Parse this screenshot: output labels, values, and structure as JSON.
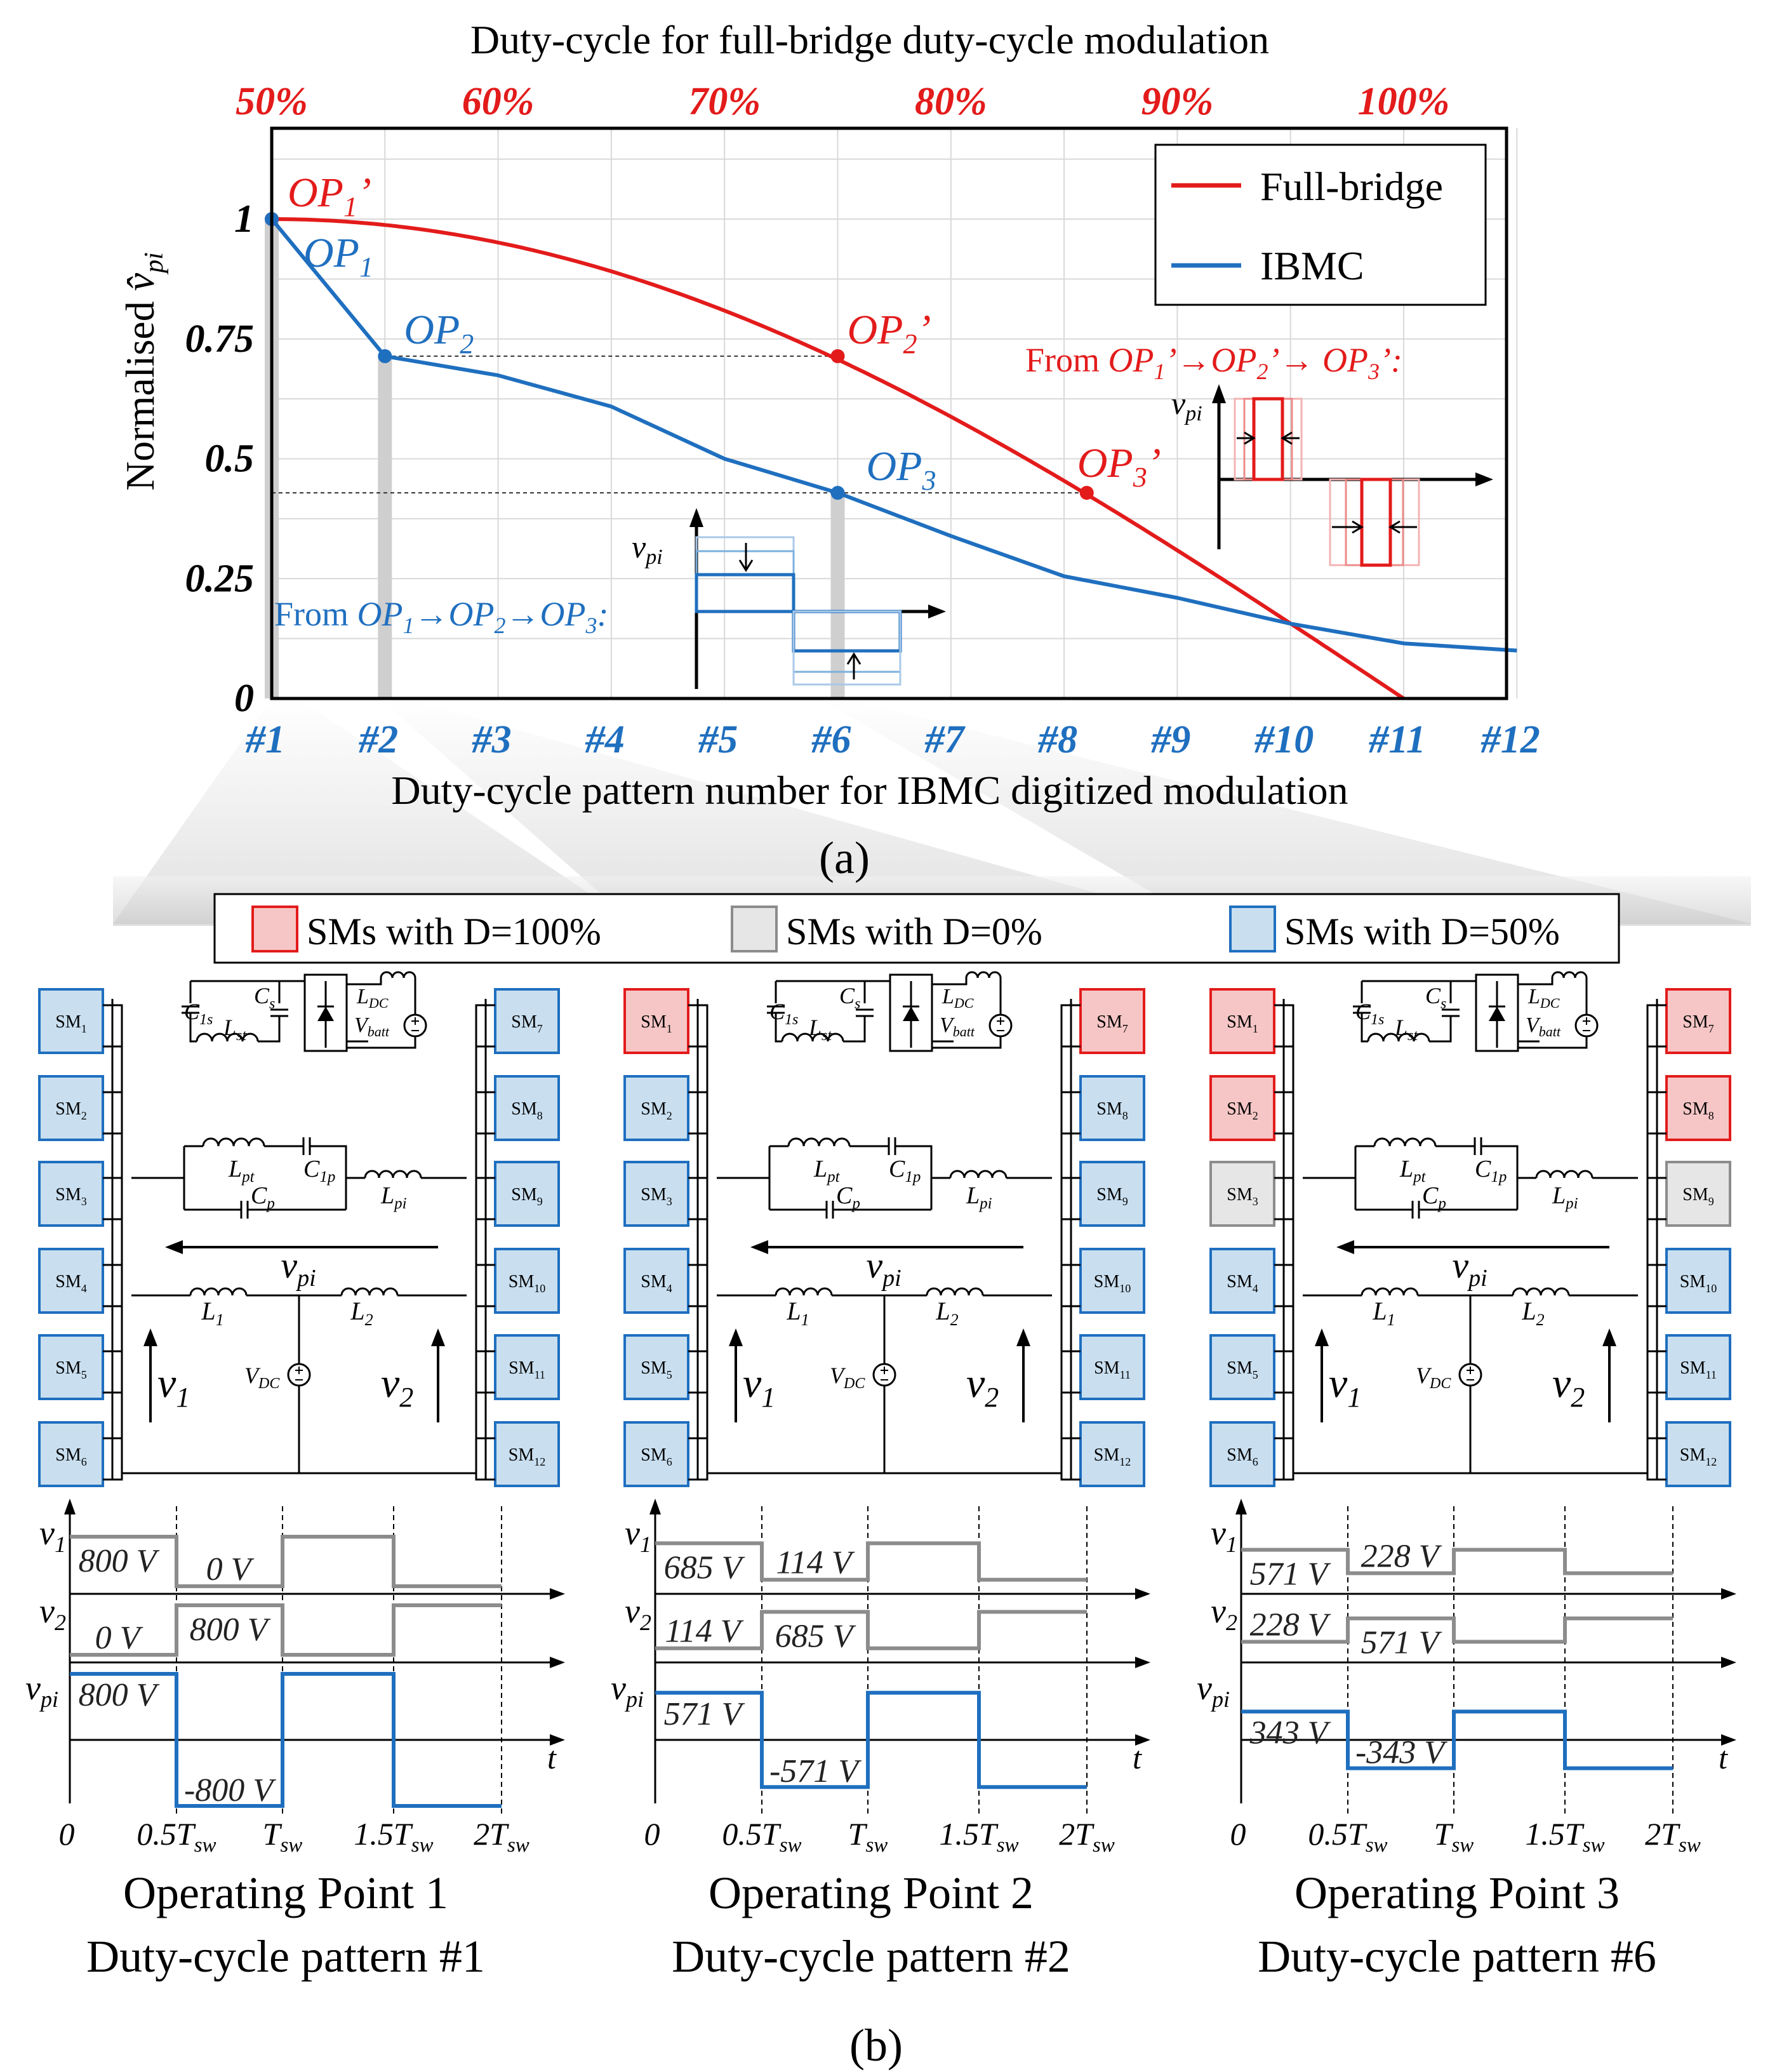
{
  "colors": {
    "red": "#e31b1b",
    "blue": "#1f6fbf",
    "grey": "#8c8c8c",
    "fill_red": "#f6c6c6",
    "fill_grey": "#e6e6e6",
    "fill_blue": "#c9dff0",
    "black": "#000000"
  },
  "chart_data": {
    "type": "line",
    "top_axis_title": "Duty-cycle for full-bridge duty-cycle modulation",
    "top_ticks": [
      "50%",
      "60%",
      "70%",
      "80%",
      "90%",
      "100%"
    ],
    "top_tick_values": [
      50,
      60,
      70,
      80,
      90,
      100
    ],
    "xlabel": "Duty-cycle pattern number for IBMC digitized modulation",
    "ylabel": "Normalised v̂pi",
    "x_ticks": [
      "#1",
      "#2",
      "#3",
      "#4",
      "#5",
      "#6",
      "#7",
      "#8",
      "#9",
      "#10",
      "#11",
      "#12"
    ],
    "xlim": [
      1,
      12
    ],
    "y_ticks": [
      "0",
      "0.25",
      "0.5",
      "0.75",
      "1"
    ],
    "y_tick_values": [
      0,
      0.25,
      0.5,
      0.75,
      1
    ],
    "ylim": [
      0,
      1.2
    ],
    "grid": true,
    "legend_position": "top-right",
    "series": [
      {
        "name": "Full-bridge",
        "color": "#e31b1b",
        "duty_cycle": [
          50,
          55,
          60,
          65,
          70,
          75,
          80,
          85,
          90,
          95,
          100
        ],
        "x": [
          1,
          2,
          3,
          4,
          5,
          6,
          7,
          8,
          9,
          10,
          11
        ],
        "y": [
          1.0,
          0.988,
          0.951,
          0.891,
          0.809,
          0.707,
          0.588,
          0.454,
          0.309,
          0.156,
          0.0
        ]
      },
      {
        "name": "IBMC",
        "color": "#1f6fbf",
        "x": [
          1,
          2,
          3,
          4,
          5,
          6,
          7,
          8,
          9,
          10,
          11,
          12
        ],
        "y": [
          1.0,
          0.714,
          0.674,
          0.609,
          0.5,
          0.429,
          0.339,
          0.255,
          0.21,
          0.156,
          0.115,
          0.1
        ]
      }
    ],
    "points": [
      {
        "label": "OP",
        "sub": "1",
        "prime": "’",
        "color": "#e31b1b",
        "x": 1,
        "y": 1.0
      },
      {
        "label": "OP",
        "sub": "1",
        "prime": "",
        "color": "#1f6fbf",
        "x": 1,
        "y": 1.0
      },
      {
        "label": "OP",
        "sub": "2",
        "prime": "",
        "color": "#1f6fbf",
        "x": 2,
        "y": 0.714
      },
      {
        "label": "OP",
        "sub": "2",
        "prime": "’",
        "color": "#e31b1b",
        "x": 6,
        "y": 0.714
      },
      {
        "label": "OP",
        "sub": "3",
        "prime": "",
        "color": "#1f6fbf",
        "x": 6,
        "y": 0.429
      },
      {
        "label": "OP",
        "sub": "3",
        "prime": "’",
        "color": "#e31b1b",
        "x": 8.2,
        "y": 0.429
      }
    ],
    "inset_blue": {
      "prefix": "From ",
      "parts": [
        "OP",
        "1",
        "→OP",
        "2",
        "→OP",
        "3",
        ":"
      ],
      "axis": "v",
      "axis_sub": "pi"
    },
    "inset_red": {
      "prefix": "From ",
      "parts": [
        "OP",
        "1",
        "’→OP",
        "2",
        "’→ OP",
        "3",
        "’:"
      ],
      "axis": "v",
      "axis_sub": "pi"
    },
    "panel_label": "(a)"
  },
  "legend_b": [
    {
      "label": "SMs with D=100%",
      "fill": "#f6c6c6",
      "stroke": "#e31b1b"
    },
    {
      "label": "SMs with D=0%",
      "fill": "#e6e6e6",
      "stroke": "#8c8c8c"
    },
    {
      "label": "SMs with D=50%",
      "fill": "#c9dff0",
      "stroke": "#1f6fbf"
    }
  ],
  "circuit_labels": {
    "C1s": [
      "C",
      "1s"
    ],
    "Cs": [
      "C",
      "s"
    ],
    "Lst": [
      "L",
      "st"
    ],
    "LDC": [
      "L",
      "DC"
    ],
    "Vbatt": [
      "V",
      "batt"
    ],
    "Lpt": [
      "L",
      "pt"
    ],
    "C1p": [
      "C",
      "1p"
    ],
    "Cp": [
      "C",
      "p"
    ],
    "Lpi": [
      "L",
      "pi"
    ],
    "vpi": [
      "v",
      "pi"
    ],
    "L1": [
      "L",
      "1"
    ],
    "L2": [
      "L",
      "2"
    ],
    "VDC": [
      "V",
      "DC"
    ],
    "v1": [
      "v",
      "1"
    ],
    "v2": [
      "v",
      "2"
    ]
  },
  "panels": [
    {
      "states": [
        "b",
        "b",
        "b",
        "b",
        "b",
        "b",
        "b",
        "b",
        "b",
        "b",
        "b",
        "b"
      ],
      "v1_levels": [
        800,
        0
      ],
      "vpi_amp": 800,
      "v1_labels": [
        "800 V",
        "0 V"
      ],
      "v2_labels": [
        "0 V",
        "800 V"
      ],
      "vpi_labels": [
        "800 V",
        "-800 V"
      ],
      "title": "Operating Point 1",
      "subtitle": "Duty-cycle pattern #1"
    },
    {
      "states": [
        "r",
        "b",
        "b",
        "b",
        "b",
        "b",
        "r",
        "b",
        "b",
        "b",
        "b",
        "b"
      ],
      "v1_levels": [
        685,
        114
      ],
      "vpi_amp": 571,
      "v1_labels": [
        "685 V",
        "114 V"
      ],
      "v2_labels": [
        "114 V",
        "685 V"
      ],
      "vpi_labels": [
        "571 V",
        "-571 V"
      ],
      "title": "Operating Point 2",
      "subtitle": "Duty-cycle pattern #2"
    },
    {
      "states": [
        "r",
        "r",
        "g",
        "b",
        "b",
        "b",
        "r",
        "r",
        "g",
        "b",
        "b",
        "b"
      ],
      "v1_levels": [
        571,
        228
      ],
      "vpi_amp": 343,
      "v1_labels": [
        "571 V",
        "228 V"
      ],
      "v2_labels": [
        "228 V",
        "571 V"
      ],
      "vpi_labels": [
        "343 V",
        "-343 V"
      ],
      "title": "Operating Point 3",
      "subtitle": "Duty-cycle pattern #6"
    }
  ],
  "waveform_axes": {
    "v1": [
      "v",
      "1"
    ],
    "v2": [
      "v",
      "2"
    ],
    "vpi": [
      "v",
      "pi"
    ],
    "t": "t",
    "time_ticks": [
      [
        "0",
        ""
      ],
      [
        "0.5T",
        "sw"
      ],
      [
        "T",
        "sw"
      ],
      [
        "1.5T",
        "sw"
      ],
      [
        "2T",
        "sw"
      ]
    ]
  },
  "panel_label_b": "(b)"
}
